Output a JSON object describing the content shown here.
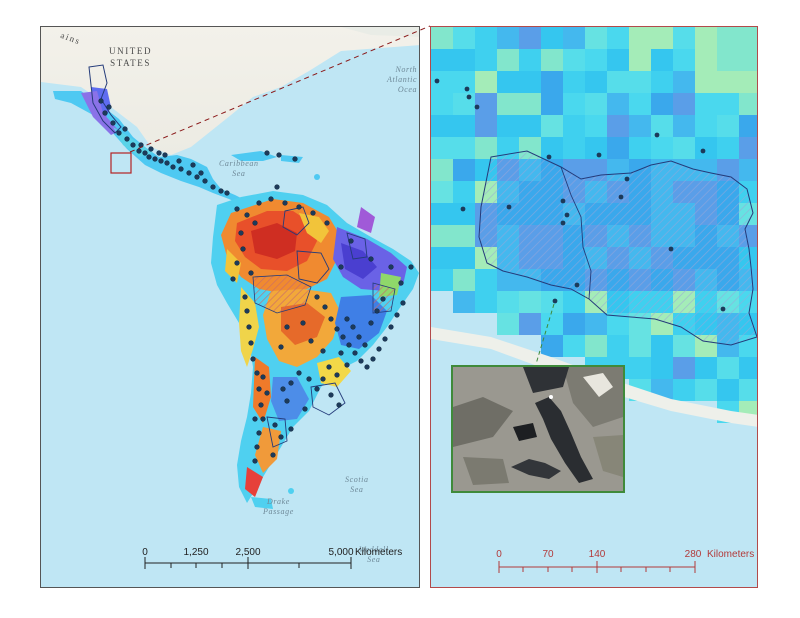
{
  "labels": {
    "country_top_left": "ains",
    "country_us_line1": "UNITED",
    "country_us_line2": "STATES",
    "north_atlantic_line1": "North",
    "north_atlantic_line2": "Atlantic",
    "north_atlantic_line3": "Ocea",
    "caribbean_line1": "Caribbean",
    "caribbean_line2": "Sea",
    "drake_line1": "Drake",
    "drake_line2": "Passage",
    "scotia_line1": "Scotia",
    "scotia_line2": "Sea",
    "weddell_line1": "Weddell",
    "weddell_line2": "Sea"
  },
  "scalebars": {
    "overview": {
      "ticks": [
        "0",
        "1,250",
        "2,500",
        "5,000"
      ],
      "unit": "Kilometers",
      "max_km": 5000
    },
    "detail": {
      "ticks": [
        "0",
        "70",
        "140",
        "280"
      ],
      "unit": "Kilometers",
      "max_km": 280
    }
  },
  "colors": {
    "ocean": "#bfe6f4",
    "frame_overview": "#555555",
    "frame_detail": "#b24a4a",
    "connector": "#8b1a1a",
    "photo_border": "#3f8a3a",
    "points": "#1c3a5a",
    "basin_outline": "#243b7a"
  }
}
